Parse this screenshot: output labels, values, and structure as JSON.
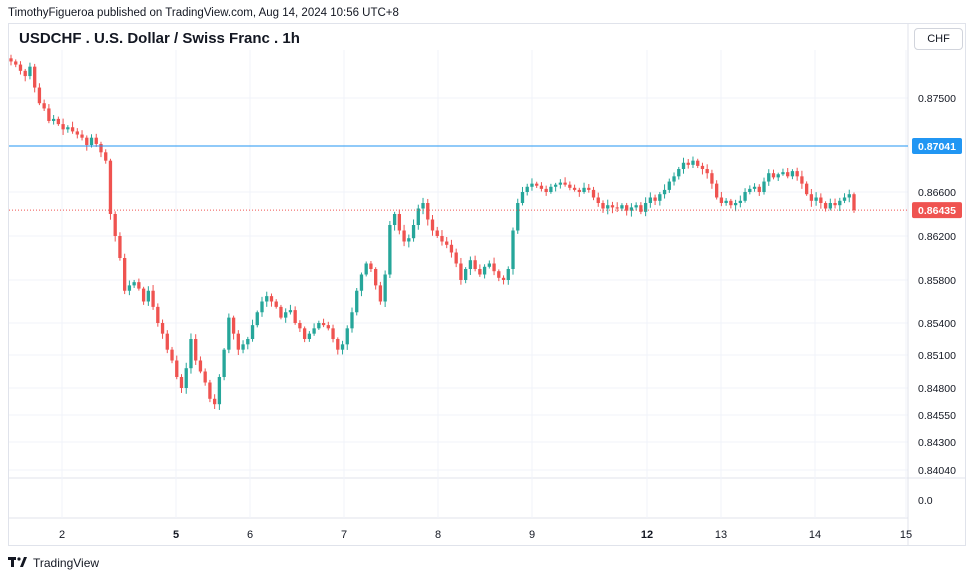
{
  "header": {
    "publisher_line": "TimothyFigueroa published on TradingView.com, Aug 14, 2024 10:56 UTC+8"
  },
  "symbol_title": "USDCHF . U.S. Dollar / Swiss Franc . 1h",
  "currency": "CHF",
  "footer": {
    "brand": "TradingView"
  },
  "colors": {
    "up": "#26a69a",
    "down": "#ef5350",
    "horizontal_line": "#2196f3",
    "grid": "#f0f3fa",
    "last_price_label": "#ef5350",
    "hline_label": "#2196f3"
  },
  "chart_data": {
    "type": "candlestick",
    "title": "USDCHF . U.S. Dollar / Swiss Franc . 1h",
    "x_tick_labels": [
      {
        "label": "2",
        "bold": false
      },
      {
        "label": "5",
        "bold": true
      },
      {
        "label": "6",
        "bold": false
      },
      {
        "label": "7",
        "bold": false
      },
      {
        "label": "8",
        "bold": false
      },
      {
        "label": "9",
        "bold": false
      },
      {
        "label": "12",
        "bold": true
      },
      {
        "label": "13",
        "bold": false
      },
      {
        "label": "14",
        "bold": false
      },
      {
        "label": "15",
        "bold": false
      }
    ],
    "y_tick_labels": [
      "0.87500",
      "0.86600",
      "0.86200",
      "0.85800",
      "0.85400",
      "0.85100",
      "0.84800",
      "0.84550",
      "0.84300",
      "0.84040",
      "0.0"
    ],
    "horizontal_line": {
      "value": 0.87041,
      "label": "0.87041"
    },
    "last_price": {
      "value": 0.86435,
      "label": "0.86435"
    },
    "closes": [
      0.8785,
      0.8782,
      0.8776,
      0.8771,
      0.878,
      0.876,
      0.8745,
      0.874,
      0.8728,
      0.873,
      0.8725,
      0.872,
      0.8722,
      0.8718,
      0.8715,
      0.8712,
      0.8705,
      0.8712,
      0.8706,
      0.8698,
      0.869,
      0.864,
      0.862,
      0.86,
      0.857,
      0.8575,
      0.8578,
      0.8572,
      0.856,
      0.857,
      0.8555,
      0.854,
      0.853,
      0.8515,
      0.8505,
      0.849,
      0.848,
      0.8498,
      0.8525,
      0.8505,
      0.8495,
      0.8485,
      0.847,
      0.8465,
      0.849,
      0.8515,
      0.8545,
      0.853,
      0.8515,
      0.852,
      0.8525,
      0.8538,
      0.855,
      0.856,
      0.8565,
      0.856,
      0.8555,
      0.8545,
      0.855,
      0.8552,
      0.854,
      0.8535,
      0.8525,
      0.853,
      0.8535,
      0.854,
      0.8538,
      0.8535,
      0.8525,
      0.8515,
      0.852,
      0.8535,
      0.855,
      0.857,
      0.8585,
      0.8595,
      0.859,
      0.8575,
      0.856,
      0.8585,
      0.863,
      0.864,
      0.8625,
      0.8615,
      0.8618,
      0.863,
      0.8645,
      0.865,
      0.8635,
      0.8625,
      0.862,
      0.8615,
      0.8612,
      0.8605,
      0.8595,
      0.858,
      0.859,
      0.8598,
      0.859,
      0.8585,
      0.8592,
      0.8595,
      0.8588,
      0.8582,
      0.858,
      0.859,
      0.8625,
      0.865,
      0.866,
      0.8665,
      0.8668,
      0.8666,
      0.8663,
      0.866,
      0.8665,
      0.8667,
      0.8669,
      0.8667,
      0.8664,
      0.8662,
      0.866,
      0.8664,
      0.8662,
      0.8655,
      0.865,
      0.8645,
      0.8648,
      0.8646,
      0.8645,
      0.8648,
      0.8643,
      0.8646,
      0.8648,
      0.8642,
      0.865,
      0.8655,
      0.8652,
      0.8658,
      0.8662,
      0.867,
      0.8675,
      0.8682,
      0.8688,
      0.8686,
      0.869,
      0.8685,
      0.8682,
      0.8678,
      0.8668,
      0.8655,
      0.865,
      0.8652,
      0.8648,
      0.865,
      0.8652,
      0.866,
      0.8663,
      0.8665,
      0.866,
      0.867,
      0.8678,
      0.8674,
      0.8677,
      0.8679,
      0.8675,
      0.868,
      0.8675,
      0.8668,
      0.8658,
      0.8652,
      0.8655,
      0.865,
      0.8645,
      0.865,
      0.8648,
      0.8652,
      0.8655,
      0.8658,
      0.86435
    ]
  }
}
